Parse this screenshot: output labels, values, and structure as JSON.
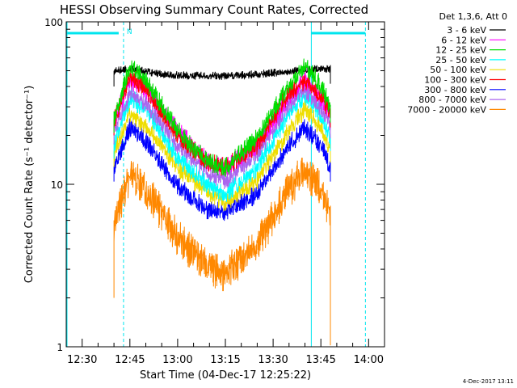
{
  "chart_data": {
    "type": "line",
    "title": "HESSI Observing Summary Count Rates, Corrected",
    "xlabel": "Start Time (04-Dec-17 12:25:22)",
    "ylabel": "Corrected Count Rate (s⁻¹ detector⁻¹)",
    "yscale": "log",
    "ylim": [
      1,
      100
    ],
    "xlim": [
      "12:25",
      "14:05"
    ],
    "x_ticks": [
      "12:30",
      "12:45",
      "13:00",
      "13:15",
      "13:30",
      "13:45",
      "14:00"
    ],
    "y_ticks": [
      "1",
      "10",
      "100"
    ],
    "legend_title": "Det 1,3,6, Att 0",
    "legend_position": "top-right",
    "data_start": "12:40",
    "data_end": "13:48",
    "eclipse_markers": {
      "night_label": "N",
      "night_end": "12:43",
      "eclipse_start": "13:42",
      "eclipse_end": "13:59",
      "color": "#00e5ee"
    },
    "series": [
      {
        "name": "3 - 6 keV",
        "color": "#000000",
        "x": [
          "12:40",
          "12:45",
          "12:55",
          "13:05",
          "13:15",
          "13:25",
          "13:35",
          "13:45",
          "13:48"
        ],
        "y": [
          50,
          52,
          48,
          47,
          47,
          48,
          50,
          52,
          52
        ]
      },
      {
        "name": "6 - 12 keV",
        "color": "#ff00ff",
        "x": [
          "12:40",
          "12:45",
          "12:50",
          "13:00",
          "13:10",
          "13:15",
          "13:25",
          "13:35",
          "13:40",
          "13:45",
          "13:48"
        ],
        "y": [
          25,
          45,
          40,
          22,
          14,
          13,
          18,
          35,
          45,
          35,
          28
        ]
      },
      {
        "name": "12 - 25 keV",
        "color": "#00dd00",
        "x": [
          "12:40",
          "12:45",
          "12:50",
          "13:00",
          "13:10",
          "13:15",
          "13:25",
          "13:35",
          "13:40",
          "13:45",
          "13:48"
        ],
        "y": [
          26,
          55,
          45,
          22,
          14,
          13,
          20,
          42,
          55,
          42,
          30
        ]
      },
      {
        "name": "25 - 50 keV",
        "color": "#00ffff",
        "x": [
          "12:40",
          "12:45",
          "12:50",
          "13:00",
          "13:10",
          "13:15",
          "13:25",
          "13:35",
          "13:40",
          "13:45",
          "13:48"
        ],
        "y": [
          18,
          35,
          30,
          15,
          10,
          9,
          13,
          28,
          37,
          28,
          20
        ]
      },
      {
        "name": "50 - 100 keV",
        "color": "#eedd00",
        "x": [
          "12:40",
          "12:45",
          "12:50",
          "13:00",
          "13:10",
          "13:15",
          "13:25",
          "13:35",
          "13:40",
          "13:45",
          "13:48"
        ],
        "y": [
          16,
          28,
          24,
          13,
          9,
          8,
          11,
          22,
          30,
          23,
          17
        ]
      },
      {
        "name": "100 - 300 keV",
        "color": "#ff0000",
        "x": [
          "12:40",
          "12:45",
          "12:50",
          "13:00",
          "13:10",
          "13:15",
          "13:25",
          "13:35",
          "13:40",
          "13:45",
          "13:48"
        ],
        "y": [
          25,
          48,
          40,
          20,
          14,
          13,
          18,
          38,
          45,
          36,
          28
        ]
      },
      {
        "name": "300 - 800 keV",
        "color": "#0000ff",
        "x": [
          "12:40",
          "12:45",
          "12:50",
          "13:00",
          "13:10",
          "13:15",
          "13:25",
          "13:35",
          "13:40",
          "13:45",
          "13:48"
        ],
        "y": [
          13,
          23,
          19,
          10,
          7,
          7,
          9,
          18,
          23,
          18,
          13
        ]
      },
      {
        "name": "800 - 7000 keV",
        "color": "#aa66ee",
        "x": [
          "12:40",
          "12:45",
          "12:50",
          "13:00",
          "13:10",
          "13:15",
          "13:25",
          "13:35",
          "13:40",
          "13:45",
          "13:48"
        ],
        "y": [
          22,
          38,
          33,
          18,
          12,
          11,
          16,
          32,
          40,
          30,
          24
        ]
      },
      {
        "name": "7000 - 20000 keV",
        "color": "#ff8800",
        "x": [
          "12:40",
          "12:45",
          "12:50",
          "13:00",
          "13:10",
          "13:15",
          "13:25",
          "13:35",
          "13:40",
          "13:45",
          "13:48"
        ],
        "y": [
          6,
          12,
          10,
          5,
          3.2,
          3,
          4.5,
          10,
          13,
          10,
          7
        ]
      }
    ]
  },
  "footer": {
    "timestamp": "4-Dec-2017 13:11"
  }
}
